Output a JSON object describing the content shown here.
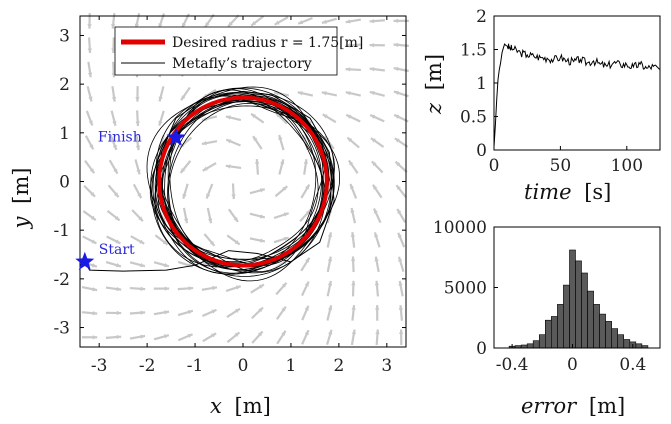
{
  "chart_data": [
    {
      "type": "scatter",
      "id": "trajectory",
      "xlim": [
        -3.4,
        3.4
      ],
      "ylim": [
        -3.4,
        3.4
      ],
      "xticks": [
        -3,
        -2,
        -1,
        0,
        1,
        2,
        3
      ],
      "yticks": [
        -3,
        -2,
        -1,
        0,
        1,
        2,
        3
      ],
      "xlabel_var": "x",
      "xlabel_unit": "[m]",
      "ylabel_var": "y",
      "ylabel_unit": "[m]",
      "legend": {
        "desired": "Desired radius r = 1.75[m]",
        "trajectory": "Metafly’s trajectory"
      },
      "desired_radius": 1.75,
      "colors": {
        "desired": "#e00000",
        "trajectory": "#000000",
        "field": "#c8c8c8",
        "marker": "#1a1ae6"
      },
      "annotations": {
        "start": {
          "label": "Start",
          "x": -3.3,
          "y": -1.65
        },
        "finish": {
          "label": "Finish",
          "x": -1.4,
          "y": 0.9
        }
      },
      "approach_path": [
        [
          -3.3,
          -1.65
        ],
        [
          -3.2,
          -1.82
        ],
        [
          -2.5,
          -1.84
        ],
        [
          -1.6,
          -1.82
        ],
        [
          -1.0,
          -1.72
        ],
        [
          -0.3,
          -1.42
        ],
        [
          0.3,
          -1.48
        ],
        [
          1.0,
          -1.65
        ],
        [
          1.6,
          -1.25
        ],
        [
          1.9,
          -0.4
        ],
        [
          1.8,
          0.6
        ],
        [
          1.4,
          1.3
        ],
        [
          0.6,
          1.78
        ],
        [
          0.0,
          1.85
        ],
        [
          -0.8,
          1.7
        ],
        [
          -1.4,
          1.3
        ],
        [
          -1.7,
          0.6
        ],
        [
          -1.75,
          0.0
        ],
        [
          -1.6,
          -0.7
        ],
        [
          -1.2,
          -1.3
        ],
        [
          -0.5,
          -1.7
        ]
      ],
      "end_path": [
        [
          -1.75,
          0.2
        ],
        [
          -1.7,
          0.55
        ],
        [
          -1.55,
          0.8
        ],
        [
          -1.4,
          0.9
        ]
      ]
    },
    {
      "type": "line",
      "id": "altitude",
      "xlim": [
        0,
        125
      ],
      "ylim": [
        0,
        2
      ],
      "xticks": [
        0,
        50,
        100
      ],
      "yticks": [
        0,
        0.5,
        1,
        1.5,
        2
      ],
      "ytick_labels": [
        "0",
        "0.5",
        "1",
        "1.5",
        "2"
      ],
      "xlabel_var": "time",
      "xlabel_unit": "[s]",
      "ylabel_var": "z",
      "ylabel_unit": "[m]",
      "x": [
        0,
        1,
        2,
        3,
        4,
        5,
        6,
        7,
        8,
        9,
        10,
        12,
        15,
        20,
        25,
        30,
        35,
        40,
        45,
        50,
        55,
        60,
        65,
        70,
        75,
        80,
        85,
        90,
        95,
        100,
        105,
        110,
        115,
        120,
        125
      ],
      "y": [
        0.05,
        0.35,
        0.75,
        1.05,
        1.2,
        1.3,
        1.45,
        1.52,
        1.58,
        1.56,
        1.55,
        1.52,
        1.5,
        1.45,
        1.42,
        1.4,
        1.38,
        1.37,
        1.35,
        1.38,
        1.33,
        1.32,
        1.35,
        1.3,
        1.33,
        1.28,
        1.25,
        1.3,
        1.28,
        1.27,
        1.24,
        1.28,
        1.22,
        1.25,
        1.2
      ]
    },
    {
      "type": "bar",
      "id": "error_histogram",
      "xlim": [
        -0.52,
        0.58
      ],
      "ylim": [
        0,
        10000
      ],
      "xticks": [
        -0.4,
        0,
        0.4
      ],
      "xtick_labels": [
        "-0.4",
        "0",
        "0.4"
      ],
      "yticks": [
        0,
        5000,
        10000
      ],
      "ytick_labels": [
        "0",
        "5000",
        "10000"
      ],
      "xlabel_var": "error",
      "xlabel_unit": "[m]",
      "bar_color": "#5a5a5a",
      "bin_width": 0.04,
      "bin_centers": [
        -0.4,
        -0.36,
        -0.32,
        -0.28,
        -0.24,
        -0.2,
        -0.16,
        -0.12,
        -0.08,
        -0.04,
        0.0,
        0.04,
        0.08,
        0.12,
        0.16,
        0.2,
        0.24,
        0.28,
        0.32,
        0.36,
        0.4,
        0.44,
        0.48
      ],
      "values": [
        150,
        200,
        250,
        350,
        600,
        1100,
        2300,
        2600,
        3600,
        5200,
        8100,
        7200,
        6200,
        4700,
        3600,
        2800,
        2200,
        1600,
        1100,
        700,
        500,
        350,
        200
      ]
    }
  ]
}
